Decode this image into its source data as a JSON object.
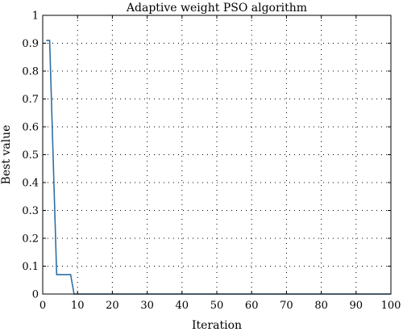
{
  "chart_data": {
    "type": "line",
    "title": "Adaptive weight PSO algorithm",
    "xlabel": "Iteration",
    "ylabel": "Best value",
    "xlim": [
      0,
      100
    ],
    "ylim": [
      0,
      1
    ],
    "xticks": [
      0,
      10,
      20,
      30,
      40,
      50,
      60,
      70,
      80,
      90,
      100
    ],
    "yticks": [
      0,
      0.1,
      0.2,
      0.3,
      0.4,
      0.5,
      0.6,
      0.7,
      0.8,
      0.9,
      1
    ],
    "grid": true,
    "series": [
      {
        "color": "#2f6fa3",
        "x": [
          1,
          2,
          4,
          8,
          9,
          10,
          100
        ],
        "y": [
          0.91,
          0.91,
          0.07,
          0.07,
          0.0,
          0.0,
          0.0
        ]
      }
    ]
  }
}
